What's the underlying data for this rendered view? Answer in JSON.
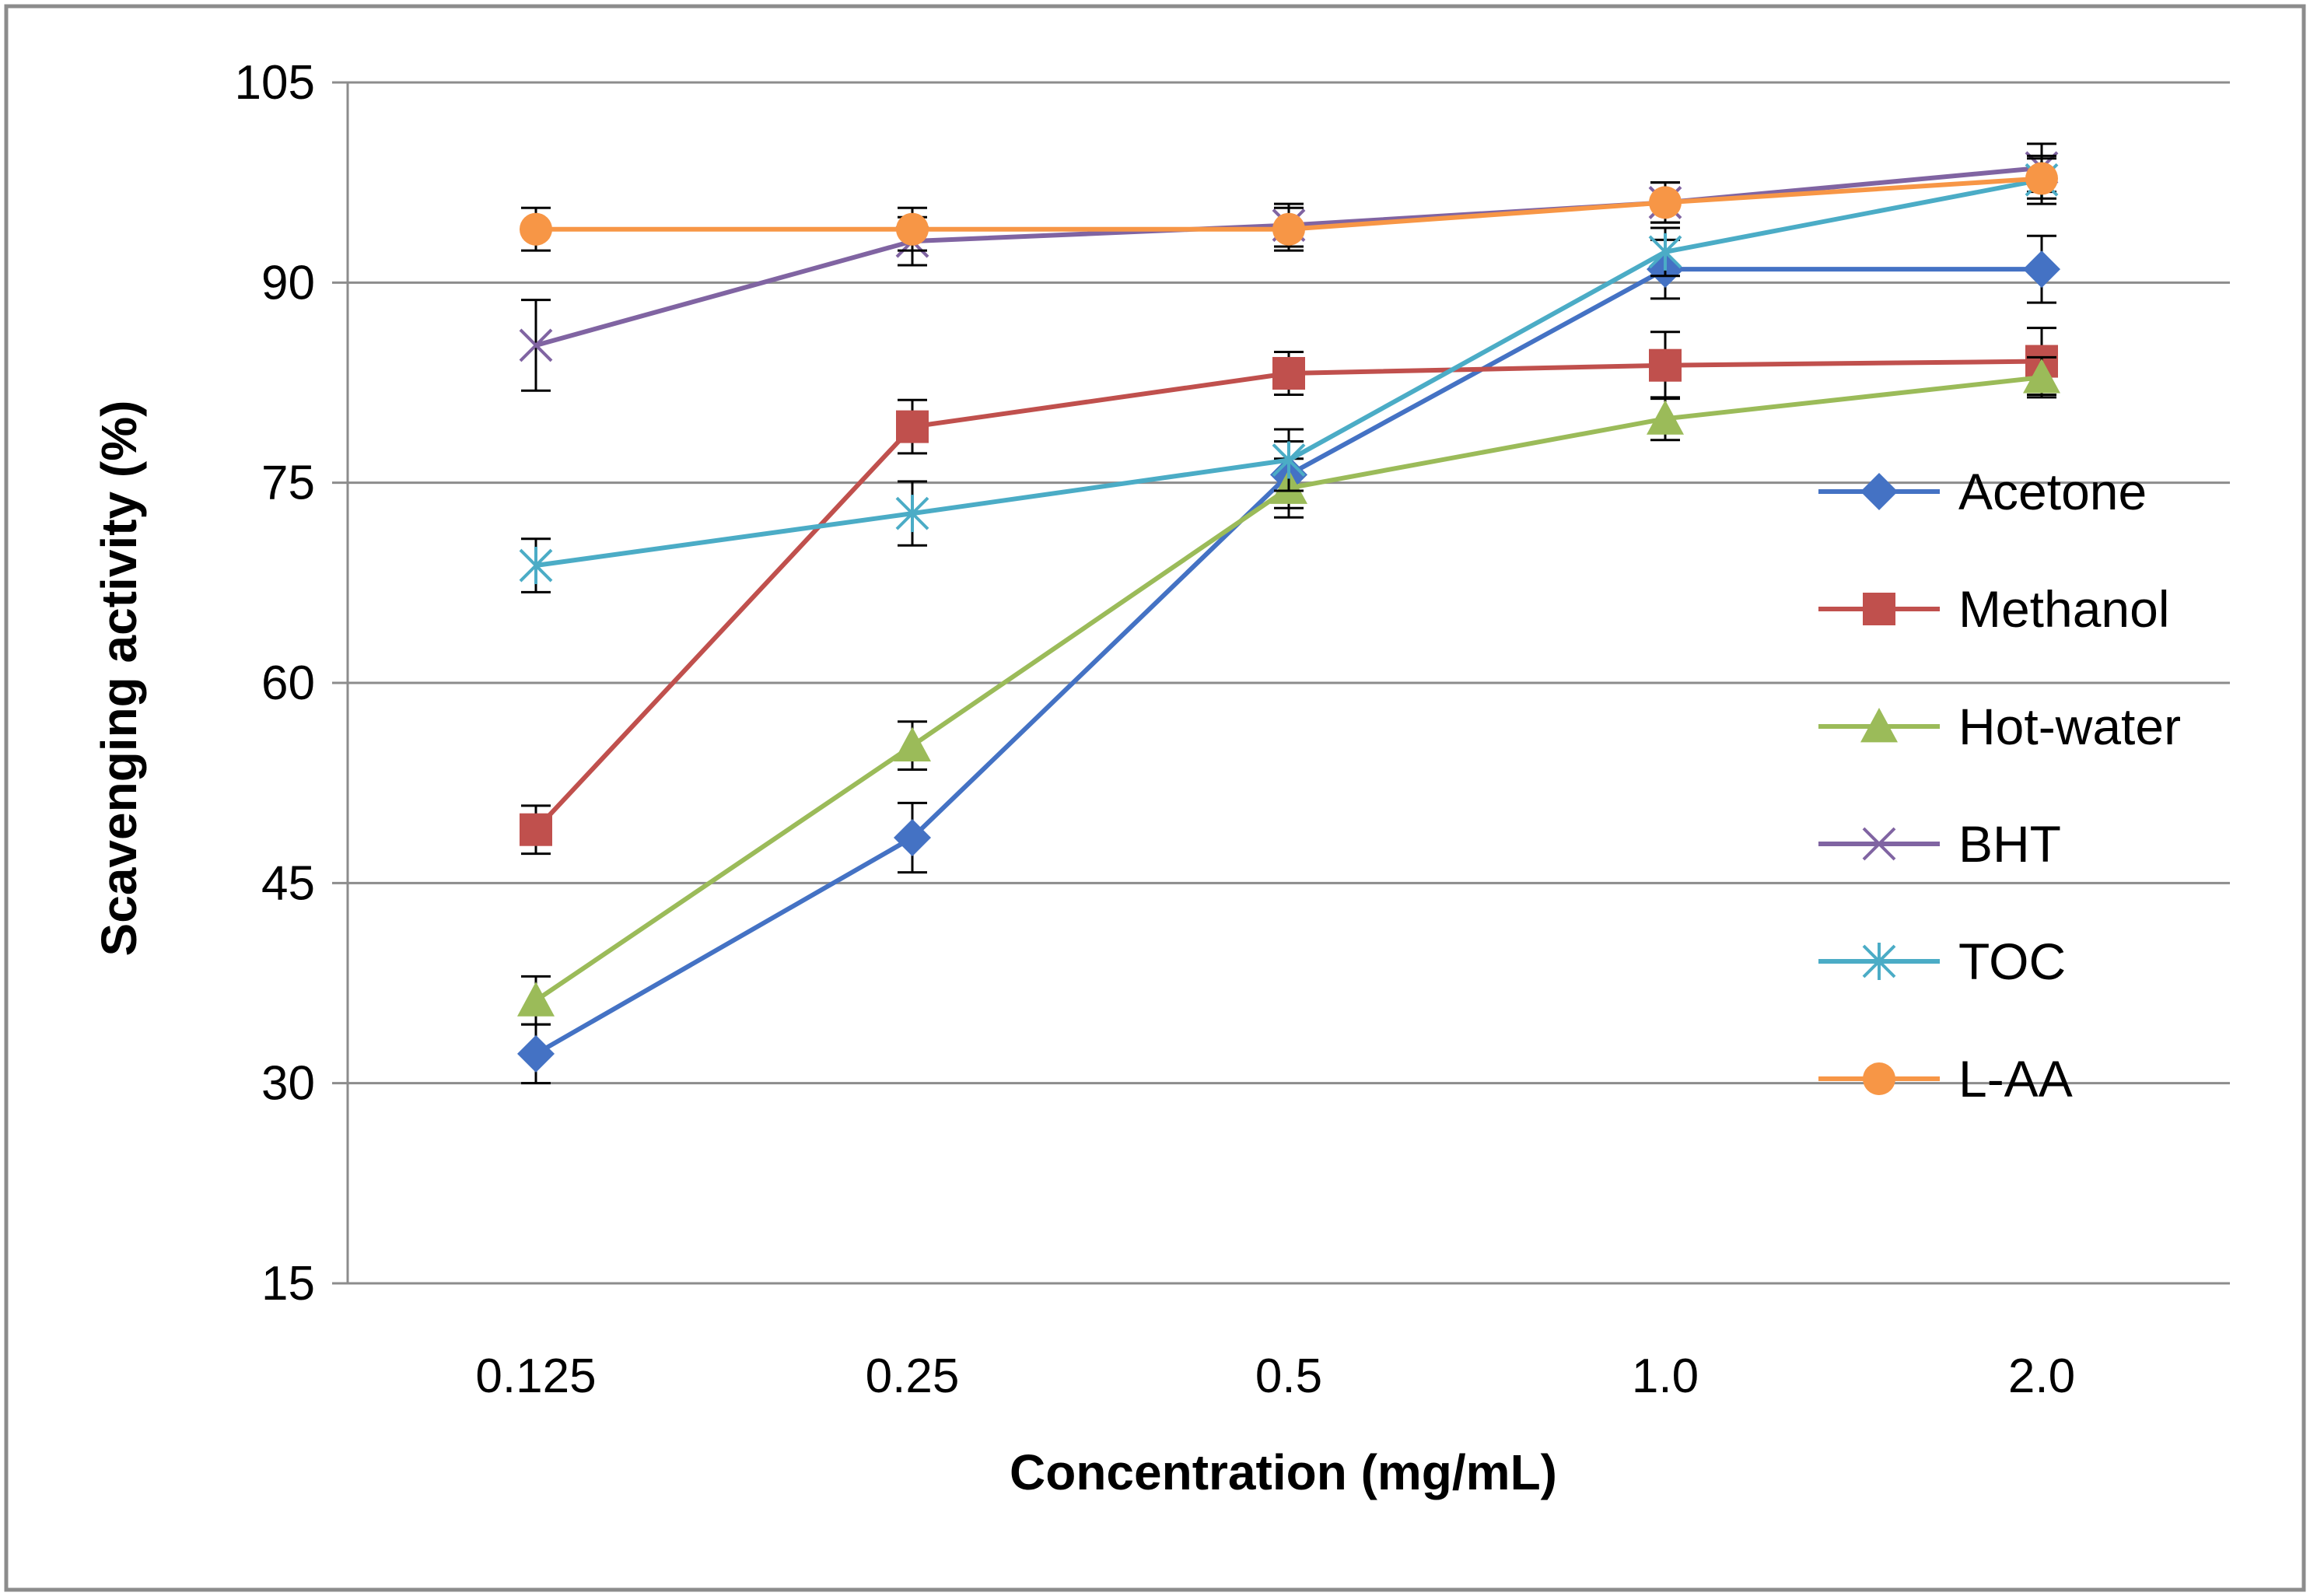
{
  "chart_data": {
    "type": "line",
    "title": "",
    "xlabel": "Concentration (mg/mL)",
    "ylabel": "Scavenging activity (%)",
    "categories": [
      "0.125",
      "0.25",
      "0.5",
      "1.0",
      "2.0"
    ],
    "ylim": [
      15,
      105
    ],
    "yticks": [
      "15",
      "30",
      "45",
      "60",
      "75",
      "90",
      "105"
    ],
    "grid": true,
    "legend_position": "right",
    "series": [
      {
        "name": "Acetone",
        "color": "#4472C4",
        "marker": "diamond",
        "values": [
          32.2,
          48.4,
          75.6,
          91.0,
          91.0
        ],
        "errors": [
          2.2,
          2.6,
          2.5,
          2.2,
          2.5
        ]
      },
      {
        "name": "Methanol",
        "color": "#C0504D",
        "marker": "square",
        "values": [
          49.0,
          79.2,
          83.2,
          83.8,
          84.1
        ],
        "errors": [
          1.8,
          2.0,
          1.6,
          2.5,
          2.5
        ]
      },
      {
        "name": "Hot-water",
        "color": "#9BBB59",
        "marker": "triangle",
        "values": [
          36.2,
          55.3,
          74.6,
          79.8,
          82.9
        ],
        "errors": [
          1.8,
          1.8,
          2.2,
          1.6,
          1.5
        ]
      },
      {
        "name": "BHT",
        "color": "#8064A2",
        "marker": "x",
        "values": [
          85.3,
          93.1,
          94.3,
          96.0,
          98.6
        ],
        "errors": [
          3.4,
          1.8,
          1.6,
          1.5,
          1.8
        ]
      },
      {
        "name": "TOC",
        "color": "#4BACC6",
        "marker": "asterisk",
        "values": [
          68.8,
          72.7,
          76.7,
          92.3,
          97.7
        ],
        "errors": [
          2.0,
          2.4,
          2.3,
          1.8,
          1.8
        ]
      },
      {
        "name": "L-AA",
        "color": "#F79646",
        "marker": "circle",
        "values": [
          94.0,
          94.0,
          94.0,
          96.0,
          97.8
        ],
        "errors": [
          1.6,
          1.6,
          1.6,
          1.5,
          1.5
        ]
      }
    ]
  }
}
